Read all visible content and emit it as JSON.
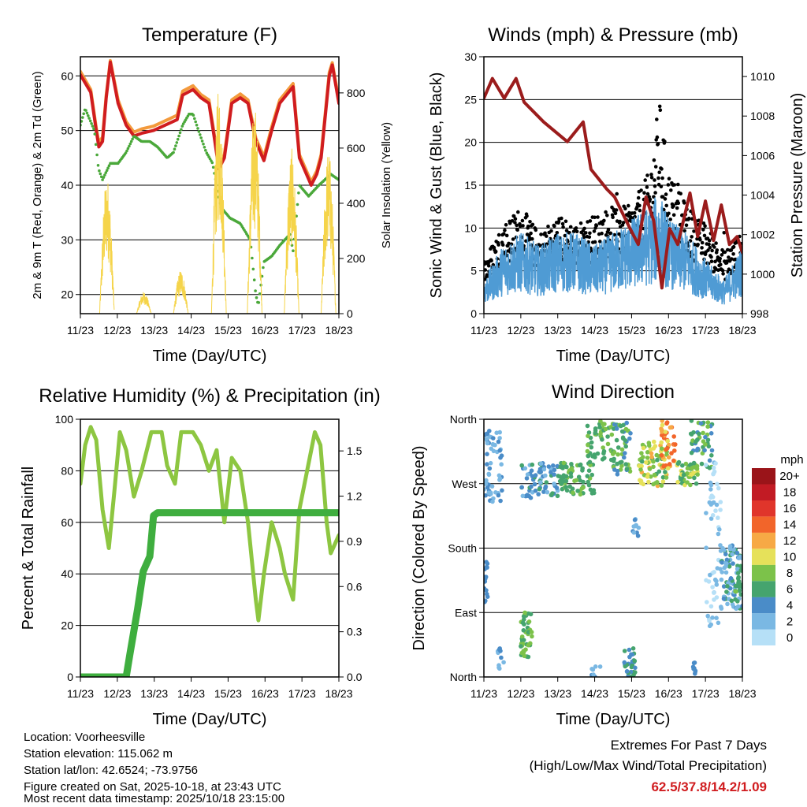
{
  "chart_data": [
    {
      "id": "temp",
      "type": "line",
      "title": "Temperature (F)",
      "xlabel": "Time (Day/UTC)",
      "ylabel": "2m & 9m T (Red, Orange) & 2m Td (Green)",
      "y2label": "Solar Insolation (Yellow)",
      "xticks": [
        "11/23",
        "12/23",
        "13/23",
        "14/23",
        "15/23",
        "16/23",
        "17/23",
        "18/23"
      ],
      "xlim": [
        0,
        7
      ],
      "ylim": [
        16.5,
        63.5
      ],
      "y2lim": [
        0,
        931
      ],
      "yticks": [
        20,
        30,
        40,
        50,
        60
      ],
      "y2ticks": [
        0,
        200,
        400,
        600,
        800
      ],
      "series": [
        {
          "name": "9m T",
          "color": "#f39a3c",
          "axis": "left",
          "style": "line",
          "x": [
            0,
            0.28,
            0.43,
            0.5,
            0.6,
            0.7,
            0.81,
            1.02,
            1.24,
            1.45,
            1.66,
            1.98,
            2.3,
            2.62,
            2.77,
            3.05,
            3.26,
            3.48,
            3.62,
            3.75,
            3.9,
            4.1,
            4.33,
            4.54,
            4.75,
            4.97,
            5.18,
            5.4,
            5.76,
            5.93,
            6.25,
            6.4,
            6.52,
            6.74,
            6.82,
            7
          ],
          "y": [
            60.8,
            57.5,
            50.5,
            47.8,
            48.8,
            56.5,
            62.8,
            55.6,
            51.6,
            49.7,
            50.3,
            50.8,
            51.8,
            52.8,
            57.2,
            58.2,
            56.6,
            55.6,
            49.6,
            43.6,
            45.6,
            55.6,
            56.7,
            55.6,
            48.6,
            45.2,
            50.6,
            55.6,
            58.6,
            45.6,
            40.6,
            42.6,
            45.6,
            60.6,
            62.4,
            55.6
          ]
        },
        {
          "name": "2m T",
          "color": "#d01c1f",
          "axis": "left",
          "style": "line",
          "x": [
            0,
            0.28,
            0.43,
            0.5,
            0.6,
            0.7,
            0.81,
            1.02,
            1.24,
            1.45,
            1.66,
            1.98,
            2.3,
            2.62,
            2.77,
            3.05,
            3.26,
            3.48,
            3.62,
            3.75,
            3.9,
            4.1,
            4.33,
            4.54,
            4.75,
            4.97,
            5.18,
            5.4,
            5.76,
            5.93,
            6.25,
            6.4,
            6.52,
            6.74,
            6.82,
            7
          ],
          "y": [
            60.2,
            57,
            50,
            47,
            48,
            56,
            62.5,
            55,
            51,
            49,
            49.5,
            50,
            51,
            52,
            56.5,
            57.5,
            56,
            55,
            49,
            43,
            45,
            55,
            56,
            55,
            48,
            44.5,
            50,
            55,
            58,
            45,
            40,
            42,
            45,
            60,
            62,
            55
          ]
        },
        {
          "name": "2m Td",
          "color": "#4aa83a",
          "axis": "left",
          "style": "dots",
          "x": [
            0,
            0.13,
            0.38,
            0.49,
            0.6,
            0.81,
            1.02,
            1.24,
            1.45,
            1.66,
            1.88,
            2.09,
            2.35,
            2.52,
            2.77,
            2.94,
            3.05,
            3.2,
            3.41,
            3.58,
            3.8,
            4.05,
            4.33,
            4.6,
            4.75,
            4.82,
            4.97,
            5.18,
            5.4,
            5.67,
            5.76,
            5.93,
            6.18,
            6.46,
            6.78,
            7
          ],
          "y": [
            51,
            54,
            50,
            43,
            41,
            44,
            44,
            46,
            49,
            48,
            48,
            47,
            45,
            46,
            51,
            53,
            53,
            50,
            46,
            44,
            36,
            34,
            33,
            30,
            20,
            18,
            26,
            27,
            29,
            31,
            28,
            40,
            38,
            40,
            42,
            41
          ]
        },
        {
          "name": "Solar Insolation",
          "color": "#f5d44a",
          "axis": "right",
          "style": "pulses",
          "peaks": [
            {
              "day": 0.72,
              "value": 500
            },
            {
              "day": 1.72,
              "value": 80
            },
            {
              "day": 2.72,
              "value": 160
            },
            {
              "day": 3.75,
              "value": 820
            },
            {
              "day": 4.72,
              "value": 760
            },
            {
              "day": 5.72,
              "value": 600
            },
            {
              "day": 6.72,
              "value": 600
            }
          ]
        }
      ]
    },
    {
      "id": "wind",
      "type": "line",
      "title": "Winds (mph) & Pressure (mb)",
      "xlabel": "Time (Day/UTC)",
      "ylabel": "Sonic Wind & Gust (Blue, Black)",
      "y2label": "Station Pressure (Maroon)",
      "xticks": [
        "11/23",
        "12/23",
        "13/23",
        "14/23",
        "15/23",
        "16/23",
        "17/23",
        "18/23"
      ],
      "xlim": [
        0,
        7
      ],
      "ylim": [
        0,
        30
      ],
      "y2lim": [
        998,
        1011
      ],
      "yticks": [
        0,
        5,
        10,
        15,
        20,
        25,
        30
      ],
      "y2ticks": [
        998,
        1000,
        1002,
        1004,
        1006,
        1008,
        1010
      ],
      "series": [
        {
          "name": "Gust",
          "color": "#000000",
          "axis": "left",
          "style": "dots",
          "x": [
            0,
            0.5,
            1,
            1.5,
            2,
            2.5,
            3,
            3.5,
            4,
            4.5,
            4.75,
            5,
            5.5,
            6,
            6.5,
            7
          ],
          "y": [
            6,
            10,
            12,
            9,
            11,
            10,
            11,
            12,
            12,
            16,
            24,
            16,
            12,
            10,
            7,
            9
          ]
        },
        {
          "name": "Sonic Wind",
          "color": "#4f9bd4",
          "axis": "left",
          "style": "line",
          "x": [
            0,
            0.5,
            1,
            1.5,
            2,
            2.5,
            3,
            3.5,
            4,
            4.5,
            4.75,
            5,
            5.5,
            6,
            6.5,
            7
          ],
          "y": [
            2.5,
            5,
            6,
            5,
            6,
            6,
            5,
            6,
            7,
            8,
            9,
            7,
            6,
            4,
            2.5,
            5
          ]
        },
        {
          "name": "Station Pressure",
          "color": "#9b1c1c",
          "axis": "right",
          "style": "line",
          "x": [
            0,
            0.23,
            0.55,
            0.87,
            1.09,
            1.62,
            2.26,
            2.69,
            2.9,
            3.33,
            3.54,
            3.75,
            3.96,
            4.18,
            4.39,
            4.6,
            4.82,
            5.03,
            5.25,
            5.58,
            5.79,
            6.0,
            6.22,
            6.43,
            6.65,
            6.86,
            7
          ],
          "y": [
            1008.9,
            1009.9,
            1008.9,
            1009.9,
            1008.7,
            1007.7,
            1006.7,
            1007.7,
            1005.3,
            1004.3,
            1003.9,
            1003.1,
            1002.3,
            1001.5,
            1003.9,
            1002.7,
            999.3,
            1002.3,
            1001.5,
            1004.1,
            1001.9,
            1003.7,
            1001.7,
            1003.5,
            1001.5,
            1001.9,
            1001.1
          ]
        }
      ]
    },
    {
      "id": "rh",
      "type": "line",
      "title": "Relative Humidity (%) & Precipitation (in)",
      "xlabel": "Time (Day/UTC)",
      "ylabel": "Percent & Total Rainfall",
      "xticks": [
        "11/23",
        "12/23",
        "13/23",
        "14/23",
        "15/23",
        "16/23",
        "17/23",
        "18/23"
      ],
      "xlim": [
        0,
        7
      ],
      "ylim": [
        0,
        100
      ],
      "y2lim": [
        0,
        1.71
      ],
      "yticks": [
        0,
        20,
        40,
        60,
        80,
        100
      ],
      "y2ticks": [
        "0.0",
        "0.3",
        "0.6",
        "0.9",
        "1.2",
        "1.5"
      ],
      "series": [
        {
          "name": "Relative Humidity",
          "color": "#8dc641",
          "axis": "left",
          "style": "line",
          "x": [
            0,
            0.13,
            0.28,
            0.43,
            0.6,
            0.77,
            0.92,
            1.07,
            1.24,
            1.45,
            1.66,
            1.92,
            2.2,
            2.35,
            2.56,
            2.73,
            3.05,
            3.26,
            3.48,
            3.69,
            3.9,
            4.1,
            4.33,
            4.54,
            4.75,
            4.82,
            4.97,
            5.18,
            5.4,
            5.54,
            5.76,
            5.93,
            6.14,
            6.35,
            6.5,
            6.67,
            6.78,
            7
          ],
          "y": [
            75,
            90,
            97,
            92,
            65,
            50,
            72,
            95,
            88,
            70,
            80,
            95,
            95,
            82,
            75,
            95,
            95,
            90,
            80,
            88,
            60,
            85,
            80,
            60,
            30,
            22,
            40,
            60,
            50,
            40,
            30,
            65,
            80,
            95,
            90,
            60,
            48,
            55
          ]
        },
        {
          "name": "Total Precipitation",
          "color": "#3fae3f",
          "axis": "right",
          "style": "line",
          "x": [
            0,
            1.24,
            1.34,
            1.55,
            1.7,
            1.88,
            1.98,
            2.09,
            7
          ],
          "y": [
            0,
            0,
            0.15,
            0.45,
            0.7,
            0.8,
            1.07,
            1.09,
            1.09
          ]
        }
      ]
    },
    {
      "id": "dir",
      "type": "scatter",
      "title": "Wind Direction",
      "xlabel": "Time (Day/UTC)",
      "ylabel": "Direction (Colored By Speed)",
      "xticks": [
        "11/23",
        "12/23",
        "13/23",
        "14/23",
        "15/23",
        "16/23",
        "17/23",
        "18/23"
      ],
      "xlim": [
        0,
        7
      ],
      "ylim": [
        0,
        360
      ],
      "yticks": [
        0,
        90,
        180,
        270,
        360
      ],
      "ytick_labels": [
        "North",
        "East",
        "South",
        "West",
        "North"
      ],
      "legend": {
        "title": "mph",
        "placement": "right",
        "labels": [
          "0",
          "2",
          "4",
          "6",
          "8",
          "10",
          "12",
          "14",
          "16",
          "18",
          "20+"
        ],
        "colors": [
          "#b6e0f7",
          "#7ab8e3",
          "#4a8cc8",
          "#45a46e",
          "#7cc24a",
          "#e6e15a",
          "#f7a945",
          "#f2652a",
          "#e0352b",
          "#c21b24",
          "#9a1419"
        ]
      },
      "clusters": [
        {
          "days": [
            0.0,
            0.5
          ],
          "dir": [
            240,
            345
          ],
          "speed": [
            1,
            5
          ],
          "n": 60
        },
        {
          "days": [
            0.0,
            0.1
          ],
          "dir": [
            100,
            165
          ],
          "speed": [
            3,
            5
          ],
          "n": 15
        },
        {
          "days": [
            0.3,
            0.55
          ],
          "dir": [
            0,
            40
          ],
          "speed": [
            2,
            4
          ],
          "n": 10
        },
        {
          "days": [
            1.0,
            1.3
          ],
          "dir": [
            25,
            90
          ],
          "speed": [
            5,
            9
          ],
          "n": 45
        },
        {
          "days": [
            1.0,
            2.0
          ],
          "dir": [
            250,
            300
          ],
          "speed": [
            2,
            6
          ],
          "n": 70
        },
        {
          "days": [
            2.0,
            3.0
          ],
          "dir": [
            255,
            300
          ],
          "speed": [
            5,
            8
          ],
          "n": 70
        },
        {
          "days": [
            2.8,
            3.5
          ],
          "dir": [
            300,
            358
          ],
          "speed": [
            5,
            8
          ],
          "n": 50
        },
        {
          "days": [
            2.9,
            3.2
          ],
          "dir": [
            0,
            15
          ],
          "speed": [
            2,
            4
          ],
          "n": 10
        },
        {
          "days": [
            3.5,
            4.0
          ],
          "dir": [
            280,
            355
          ],
          "speed": [
            4,
            8
          ],
          "n": 50
        },
        {
          "days": [
            3.8,
            4.1
          ],
          "dir": [
            0,
            40
          ],
          "speed": [
            3,
            7
          ],
          "n": 30
        },
        {
          "days": [
            4.0,
            4.2
          ],
          "dir": [
            190,
            250
          ],
          "speed": [
            2,
            4
          ],
          "n": 10
        },
        {
          "days": [
            4.2,
            5.0
          ],
          "dir": [
            265,
            330
          ],
          "speed": [
            6,
            12
          ],
          "n": 80
        },
        {
          "days": [
            4.8,
            5.2
          ],
          "dir": [
            290,
            358
          ],
          "speed": [
            10,
            15
          ],
          "n": 40
        },
        {
          "days": [
            5.2,
            5.8
          ],
          "dir": [
            268,
            300
          ],
          "speed": [
            6,
            10
          ],
          "n": 50
        },
        {
          "days": [
            5.6,
            6.2
          ],
          "dir": [
            290,
            358
          ],
          "speed": [
            4,
            8
          ],
          "n": 50
        },
        {
          "days": [
            5.65,
            5.8
          ],
          "dir": [
            0,
            20
          ],
          "speed": [
            3,
            5
          ],
          "n": 8
        },
        {
          "days": [
            6.0,
            6.45
          ],
          "dir": [
            70,
            300
          ],
          "speed": [
            0,
            2
          ],
          "n": 60
        },
        {
          "days": [
            6.4,
            7.0
          ],
          "dir": [
            95,
            185
          ],
          "speed": [
            1,
            6
          ],
          "n": 90
        },
        {
          "days": [
            6.8,
            7.0
          ],
          "dir": [
            115,
            150
          ],
          "speed": [
            5,
            8
          ],
          "n": 15
        }
      ]
    }
  ],
  "footer": {
    "location": "Location: Voorheesville",
    "elevation": "Station elevation: 115.062 m",
    "latlon": "Station lat/lon: 42.6524; -73.9756",
    "created": "Figure created on Sat, 2025-10-18, at 23:43 UTC",
    "latest": "Most recent data timestamp: 2025/10/18 23:15:00"
  },
  "extremes": {
    "title": "Extremes For Past 7 Days",
    "subtitle": "(High/Low/Max Wind/Total Precipitation)",
    "values": "62.5/37.8/14.2/1.09",
    "color": "#d01c1f"
  }
}
